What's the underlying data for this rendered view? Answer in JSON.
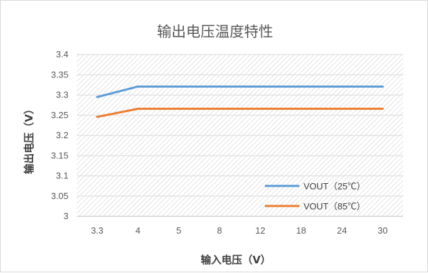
{
  "chart_data": {
    "type": "line",
    "title": "输出电压温度特性",
    "xlabel": "输入电压（V）",
    "ylabel": "输出电压（V）",
    "categories": [
      "3.3",
      "4",
      "5",
      "8",
      "12",
      "18",
      "24",
      "30"
    ],
    "ylim": [
      3,
      3.4
    ],
    "yticks": [
      "3.4",
      "3.35",
      "3.3",
      "3.25",
      "3.2",
      "3.15",
      "3.1",
      "3.05",
      "3"
    ],
    "grid": true,
    "legend_position": "bottom-right",
    "series": [
      {
        "name": "VOUT（25℃）",
        "color": "#5B9BD5",
        "values": [
          3.295,
          3.321,
          3.321,
          3.321,
          3.321,
          3.321,
          3.321,
          3.321
        ]
      },
      {
        "name": "VOUT（85℃）",
        "color": "#ED7D31",
        "values": [
          3.246,
          3.266,
          3.266,
          3.266,
          3.266,
          3.266,
          3.266,
          3.266
        ]
      }
    ]
  }
}
